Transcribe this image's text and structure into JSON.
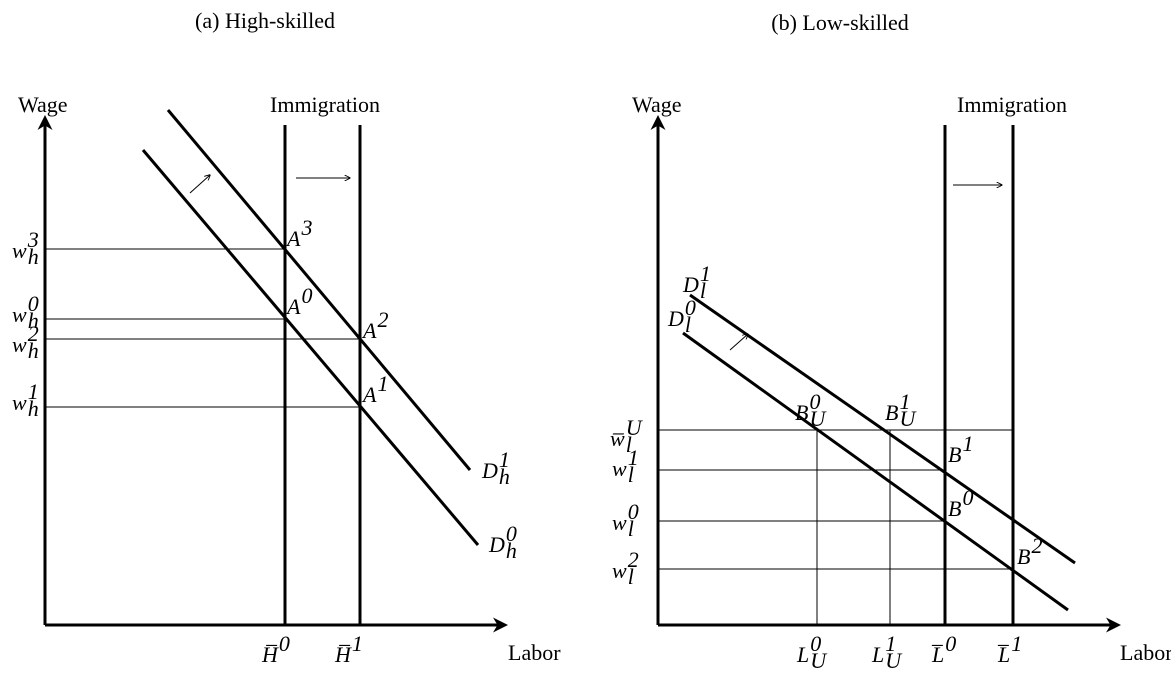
{
  "panels": [
    {
      "title": "(a) High-skilled",
      "y_axis": "Wage",
      "x_axis": "Labor",
      "shift": "Immigration",
      "wage_labels": [
        {
          "base": "w",
          "sub": "h",
          "sup": "3"
        },
        {
          "base": "w",
          "sub": "h",
          "sup": "0"
        },
        {
          "base": "w",
          "sub": "h",
          "sup": "2"
        },
        {
          "base": "w",
          "sub": "h",
          "sup": "1"
        }
      ],
      "point_labels": [
        {
          "base": "A",
          "sup": "3"
        },
        {
          "base": "A",
          "sup": "0"
        },
        {
          "base": "A",
          "sup": "2"
        },
        {
          "base": "A",
          "sup": "1"
        }
      ],
      "curve_labels": [
        {
          "base": "D",
          "sub": "h",
          "sup": "1"
        },
        {
          "base": "D",
          "sub": "h",
          "sup": "0"
        }
      ],
      "quantity_labels": [
        {
          "base": "H̅",
          "sup": "0"
        },
        {
          "base": "H̅",
          "sup": "1"
        }
      ]
    },
    {
      "title": "(b) Low-skilled",
      "y_axis": "Wage",
      "x_axis": "Labor",
      "shift": "Immigration",
      "wage_labels": [
        {
          "base": "w̅",
          "sub": "l",
          "sup": "U"
        },
        {
          "base": "w",
          "sub": "l",
          "sup": "1"
        },
        {
          "base": "w",
          "sub": "l",
          "sup": "0"
        },
        {
          "base": "w",
          "sub": "l",
          "sup": "2"
        }
      ],
      "point_labels": [
        {
          "base": "B",
          "sub": "U",
          "sup": "0"
        },
        {
          "base": "B",
          "sub": "U",
          "sup": "1"
        },
        {
          "base": "B",
          "sup": "1"
        },
        {
          "base": "B",
          "sup": "0"
        },
        {
          "base": "B",
          "sup": "2"
        }
      ],
      "curve_labels": [
        {
          "base": "D",
          "sub": "l",
          "sup": "1"
        },
        {
          "base": "D",
          "sub": "l",
          "sup": "0"
        }
      ],
      "quantity_labels": [
        {
          "base": "L",
          "sub": "U",
          "sup": "0"
        },
        {
          "base": "L",
          "sub": "U",
          "sup": "1"
        },
        {
          "base": "L̅",
          "sup": "0"
        },
        {
          "base": "L̅",
          "sup": "1"
        }
      ]
    }
  ]
}
